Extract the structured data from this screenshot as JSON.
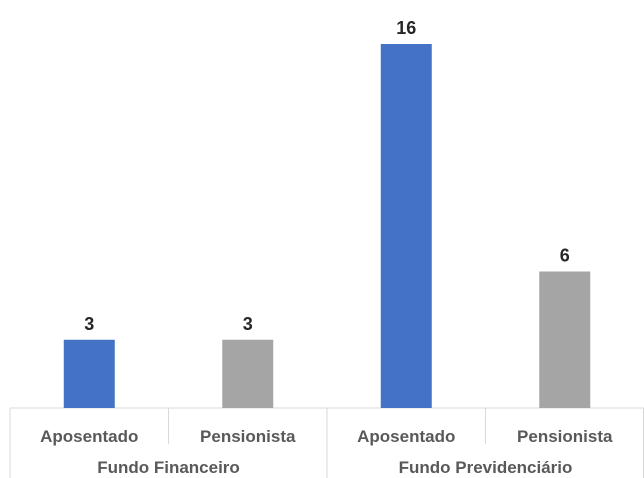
{
  "chart_data": {
    "type": "bar",
    "title": "",
    "xlabel": "",
    "ylabel": "",
    "ylim": [
      0,
      16
    ],
    "groups": [
      {
        "name": "Fundo Financeiro",
        "bars": [
          {
            "category": "Aposentado",
            "value": 3,
            "label": "3",
            "color": "#4472C4"
          },
          {
            "category": "Pensionista",
            "value": 3,
            "label": "3",
            "color": "#A5A5A5"
          }
        ]
      },
      {
        "name": "Fundo Previdenciário",
        "bars": [
          {
            "category": "Aposentado",
            "value": 16,
            "label": "16",
            "color": "#4472C4"
          },
          {
            "category": "Pensionista",
            "value": 6,
            "label": "6",
            "color": "#A5A5A5"
          }
        ]
      }
    ],
    "grid": false,
    "legend": "none"
  }
}
